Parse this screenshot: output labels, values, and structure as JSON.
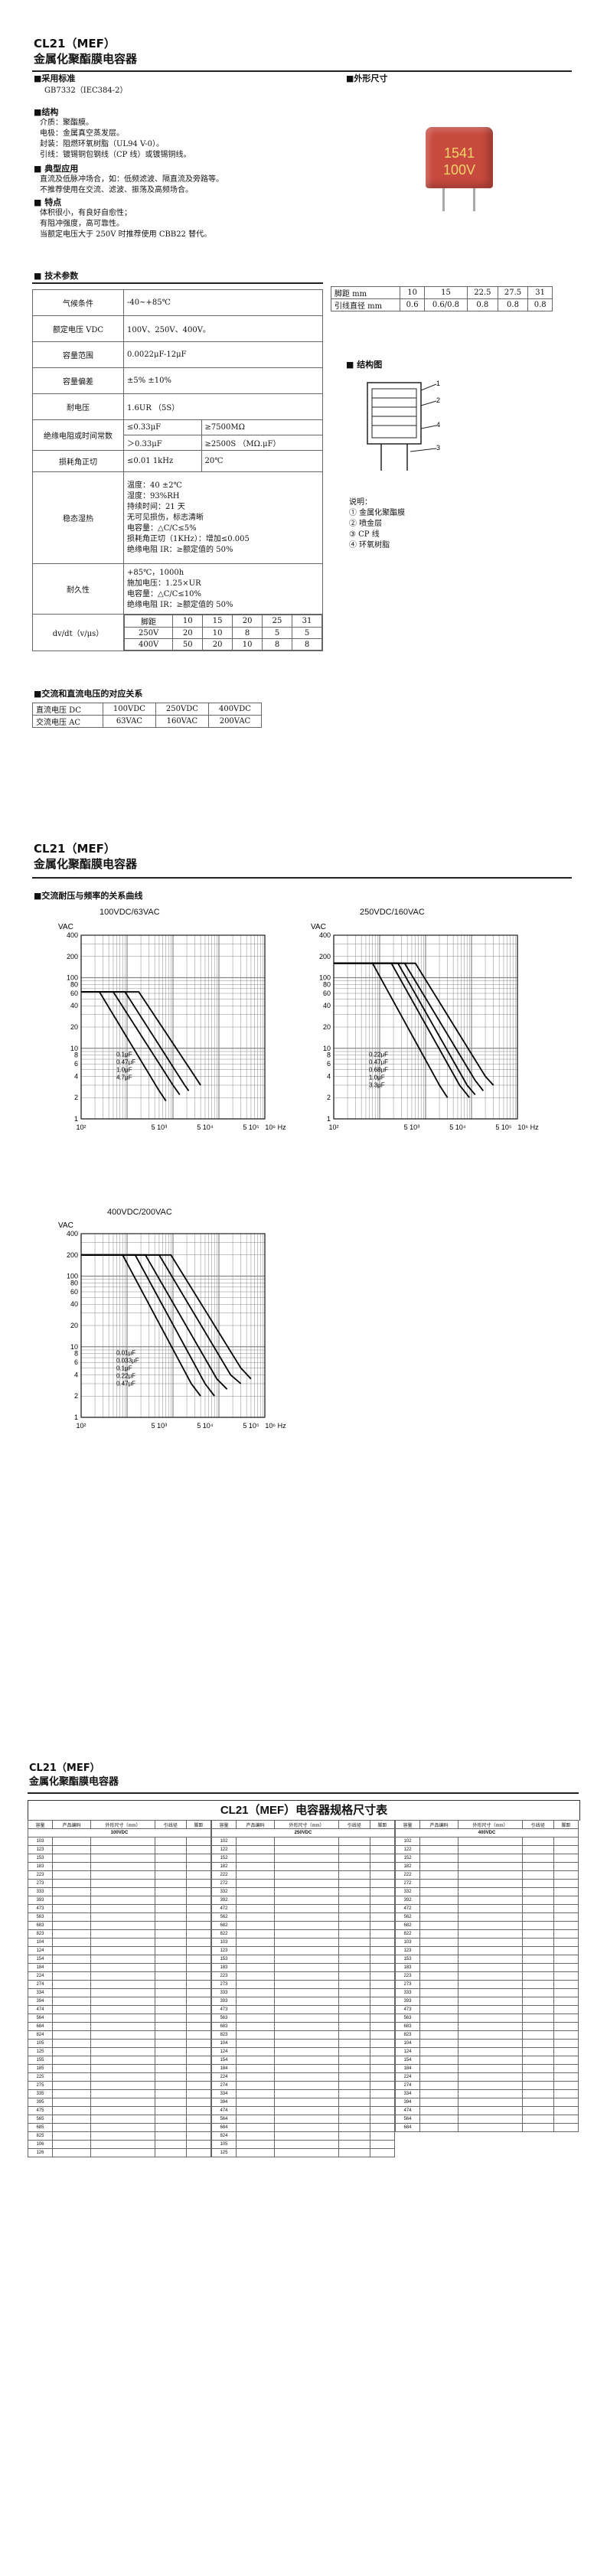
{
  "page1": {
    "title_line1": "CL21（MEF）",
    "title_line2": "金属化聚酯膜电容器",
    "std_heading": "■采用标准",
    "std_text": "GB7332（IEC384-2）",
    "struct_heading": "■结构",
    "struct_lines": [
      "介质：聚酯膜。",
      "电极：金属真空蒸发层。",
      "封装：阻燃环氧树脂（UL94 V-0）。",
      "引线：镀锡铜包钢线（CP 线）或镀锡铜线。"
    ],
    "app_heading": "■ 典型应用",
    "app_lines": [
      "直流及低脉冲场合，如：低频滤波、隔直流及旁路等。",
      "不推荐使用在交流、滤波、振荡及高频场合。"
    ],
    "feat_heading": "■ 特点",
    "feat_lines": [
      "体积很小，有良好自愈性；",
      "有阻冲强度，高可靠性。",
      "当额定电压大于 250V 时推荐使用 CBB22 替代。"
    ],
    "outline_heading": "■外形尺寸",
    "cap_marking_1": "1541",
    "cap_marking_2": "100V",
    "pitch_table": {
      "rows": [
        [
          "脚距 mm",
          "10",
          "15",
          "22.5",
          "27.5",
          "31"
        ],
        [
          "引线直径 mm",
          "0.6",
          "0.6/0.8",
          "0.8",
          "0.8",
          "0.8"
        ]
      ]
    },
    "tech_heading": "■ 技术参数",
    "tech": {
      "r1_label": "气候条件",
      "r1_value": "-40~+85℃",
      "r2_label": "额定电压 VDC",
      "r2_value": "100V、250V、400V。",
      "r3_label": "容量范围",
      "r3_value": "0.0022μF-12μF",
      "r4_label": "容量偏差",
      "r4_value": "±5%   ±10%",
      "r5_label": "耐电压",
      "r5_value": "1.6UR （5S）",
      "r6_label": "绝缘电阻或时间常数",
      "r6_a1": "≤0.33μF",
      "r6_b1": "≥7500MΩ",
      "r6_a2": "＞0.33μF",
      "r6_b2": "≥2500S （MΩ.μF）",
      "r7_label": "损耗角正切",
      "r7_a": "≤0.01  1kHz",
      "r7_b": "20℃",
      "r8_label": "稳态湿热",
      "r8_lines": [
        "温度：40 ±2℃",
        "湿度：93%RH",
        "持续时间：21 天",
        "无可见损伤，标志清晰",
        "电容量：△C/C≤5%",
        "损耗角正切（1KHz）：增加≤0.005",
        "绝缘电阻 IR：≥额定值的 50%"
      ],
      "r9_label": "耐久性",
      "r9_lines": [
        "+85℃，1000h",
        "施加电压：1.25×UR",
        "电容量：△C/C≤10%",
        "绝缘电阻 IR：≥额定值的 50%"
      ],
      "r10_label": "dv/dt（v/μs）",
      "r10_rows": [
        [
          "脚距",
          "10",
          "15",
          "20",
          "25",
          "31"
        ],
        [
          "250V",
          "20",
          "10",
          "8",
          "5",
          "5"
        ],
        [
          "400V",
          "50",
          "20",
          "10",
          "8",
          "8"
        ]
      ]
    },
    "drawing_heading": "■ 结构图",
    "drawing_caption": "说明：",
    "drawing_items": [
      "①  金属化聚酯膜",
      "②  喷金层",
      "③  CP 线",
      "④  环氧树脂"
    ],
    "acdc_heading": "■交流和直流电压的对应关系",
    "acdc_rows": [
      [
        "直流电压 DC",
        "100VDC",
        "250VDC",
        "400VDC"
      ],
      [
        "交流电压 AC",
        "63VAC",
        "160VAC",
        "200VAC"
      ]
    ]
  },
  "page2": {
    "title_line1": "CL21（MEF）",
    "title_line2": "金属化聚酯膜电容器",
    "curve_heading": "■交流耐压与频率的关系曲线",
    "chart_data": [
      {
        "type": "line",
        "title": "100VDC/63VAC",
        "ylabel": "VAC",
        "y_ticks": [
          "400",
          "200",
          "100",
          "80",
          "60",
          "40",
          "20",
          "10",
          "8",
          "6",
          "4",
          "2",
          "1"
        ],
        "x_ticks": [
          "10²",
          "5 10³",
          "5 10⁴",
          "5 10⁵",
          "10⁶ Hz"
        ],
        "xlim": [
          100,
          1000000
        ],
        "ylim": [
          1,
          400
        ],
        "series": [
          {
            "name": "0.1μF",
            "points": [
              [
                100,
                63
              ],
              [
                1800,
                63
              ],
              [
                30000,
                4
              ],
              [
                40000,
                3
              ]
            ]
          },
          {
            "name": "0.47μF",
            "points": [
              [
                100,
                63
              ],
              [
                900,
                63
              ],
              [
                18000,
                3
              ],
              [
                22000,
                2.5
              ]
            ]
          },
          {
            "name": "1.0μF",
            "points": [
              [
                100,
                63
              ],
              [
                500,
                63
              ],
              [
                10000,
                3
              ],
              [
                14000,
                2.2
              ]
            ]
          },
          {
            "name": "4.7μF",
            "points": [
              [
                100,
                63
              ],
              [
                250,
                63
              ],
              [
                5000,
                2.5
              ],
              [
                7000,
                1.8
              ]
            ]
          }
        ]
      },
      {
        "type": "line",
        "title": "250VDC/160VAC",
        "ylabel": "VAC",
        "y_ticks": [
          "400",
          "200",
          "100",
          "80",
          "60",
          "40",
          "20",
          "10",
          "8",
          "6",
          "4",
          "2",
          "1"
        ],
        "x_ticks": [
          "10²",
          "5 10³",
          "5 10⁴",
          "5 10⁵",
          "10⁶ Hz"
        ],
        "xlim": [
          100,
          1000000
        ],
        "ylim": [
          1,
          400
        ],
        "series": [
          {
            "name": "0.22μF",
            "points": [
              [
                100,
                160
              ],
              [
                6000,
                160
              ],
              [
                200000,
                4
              ],
              [
                300000,
                3
              ]
            ]
          },
          {
            "name": "0.47μF",
            "points": [
              [
                100,
                160
              ],
              [
                3500,
                160
              ],
              [
                120000,
                3.5
              ],
              [
                180000,
                2.5
              ]
            ]
          },
          {
            "name": "0.68μF",
            "points": [
              [
                100,
                160
              ],
              [
                2500,
                160
              ],
              [
                80000,
                3
              ],
              [
                120000,
                2.2
              ]
            ]
          },
          {
            "name": "1.0μF",
            "points": [
              [
                100,
                160
              ],
              [
                1800,
                160
              ],
              [
                55000,
                3
              ],
              [
                90000,
                2
              ]
            ]
          },
          {
            "name": "3.3μF",
            "points": [
              [
                100,
                160
              ],
              [
                700,
                160
              ],
              [
                20000,
                3
              ],
              [
                30000,
                2
              ]
            ]
          }
        ]
      },
      {
        "type": "line",
        "title": "400VDC/200VAC",
        "ylabel": "VAC",
        "y_ticks": [
          "400",
          "200",
          "100",
          "80",
          "60",
          "40",
          "20",
          "10",
          "8",
          "6",
          "4",
          "2",
          "1"
        ],
        "x_ticks": [
          "10²",
          "5 10³",
          "5 10⁴",
          "5 10⁵",
          "10⁶ Hz"
        ],
        "xlim": [
          100,
          1000000
        ],
        "ylim": [
          1,
          400
        ],
        "series": [
          {
            "name": "0.01μF",
            "points": [
              [
                100,
                200
              ],
              [
                9000,
                200
              ],
              [
                300000,
                5
              ],
              [
                500000,
                3.5
              ]
            ]
          },
          {
            "name": "0.033μF",
            "points": [
              [
                100,
                200
              ],
              [
                5000,
                200
              ],
              [
                180000,
                4
              ],
              [
                300000,
                3
              ]
            ]
          },
          {
            "name": "0.1μF",
            "points": [
              [
                100,
                200
              ],
              [
                2500,
                200
              ],
              [
                90000,
                3.5
              ],
              [
                150000,
                2.5
              ]
            ]
          },
          {
            "name": "0.22μF",
            "points": [
              [
                100,
                200
              ],
              [
                1500,
                200
              ],
              [
                50000,
                3
              ],
              [
                80000,
                2
              ]
            ]
          },
          {
            "name": "0.47μF",
            "points": [
              [
                100,
                200
              ],
              [
                800,
                200
              ],
              [
                25000,
                3
              ],
              [
                40000,
                2
              ]
            ]
          }
        ]
      }
    ]
  },
  "page3": {
    "title_line1": "CL21（MEF）",
    "title_line2": "金属化聚酯膜电容器",
    "table_title": "CL21（MEF）电容器规格尺寸表",
    "col_headers": [
      "容量",
      "产品编码",
      "外形尺寸（mm）",
      "引线径",
      "脚距"
    ],
    "sub_headers": [
      "W",
      "H",
      "T",
      "d",
      "P"
    ],
    "groups": [
      "100VDC",
      "250VDC",
      "400VDC"
    ],
    "group1_caps": [
      "103",
      "123",
      "153",
      "183",
      "223",
      "273",
      "333",
      "393",
      "473",
      "563",
      "683",
      "823",
      "104",
      "124",
      "154",
      "184",
      "224",
      "274",
      "334",
      "394",
      "474",
      "564",
      "684",
      "824",
      "105",
      "125",
      "155",
      "185",
      "225",
      "275",
      "335",
      "395",
      "475",
      "565",
      "685",
      "825",
      "106",
      "126"
    ],
    "group2_caps": [
      "102",
      "122",
      "152",
      "182",
      "222",
      "272",
      "332",
      "392",
      "472",
      "562",
      "682",
      "822",
      "103",
      "123",
      "153",
      "183",
      "223",
      "273",
      "333",
      "393",
      "473",
      "563",
      "683",
      "823",
      "104",
      "124",
      "154",
      "184",
      "224",
      "274",
      "334",
      "394",
      "474",
      "564",
      "684",
      "824",
      "105",
      "125"
    ],
    "group3_caps": [
      "102",
      "122",
      "152",
      "182",
      "222",
      "272",
      "332",
      "392",
      "472",
      "562",
      "682",
      "822",
      "103",
      "123",
      "153",
      "183",
      "223",
      "273",
      "333",
      "393",
      "473",
      "563",
      "683",
      "823",
      "104",
      "124",
      "154",
      "184",
      "224",
      "274",
      "334",
      "394",
      "474",
      "564",
      "684"
    ]
  }
}
